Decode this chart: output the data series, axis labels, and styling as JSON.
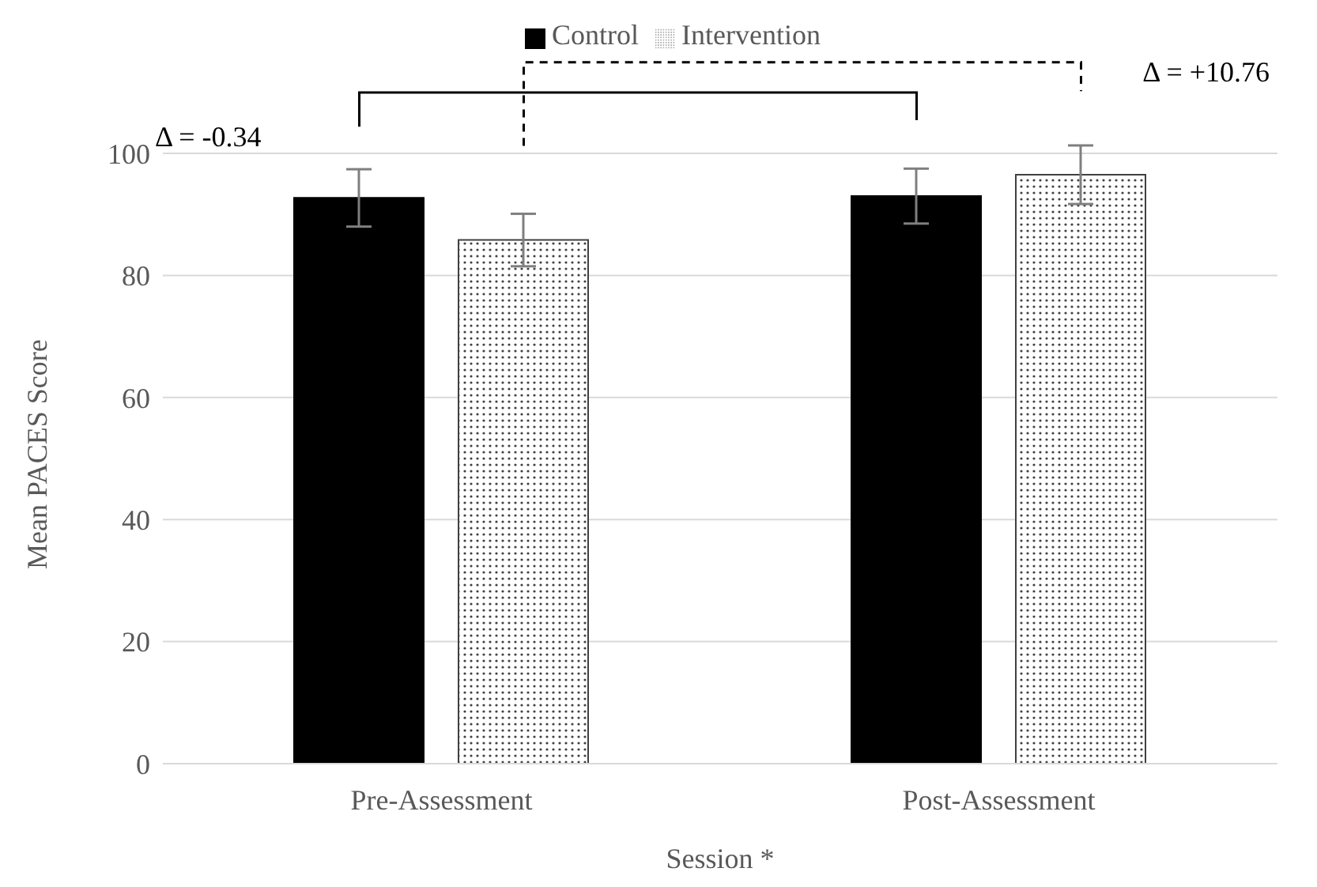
{
  "chart_data": {
    "type": "bar",
    "xlabel": "Session *",
    "ylabel": "Mean PACES Score",
    "categories": [
      "Pre-Assessment",
      "Post-Assessment"
    ],
    "series": [
      {
        "name": "Control",
        "color": "#000000",
        "values": [
          92.7,
          93.0
        ],
        "errors": [
          4.7,
          4.5
        ]
      },
      {
        "name": "Intervention",
        "color": "#404040",
        "values": [
          85.8,
          96.5
        ],
        "errors": [
          4.3,
          4.8
        ]
      }
    ],
    "ylim": [
      0,
      100
    ],
    "yticks": [
      0,
      20,
      40,
      60,
      80,
      100
    ],
    "grid": "y",
    "legend": "top",
    "annotations": [
      "Δ = -0.34",
      "Δ = +10.76"
    ]
  }
}
